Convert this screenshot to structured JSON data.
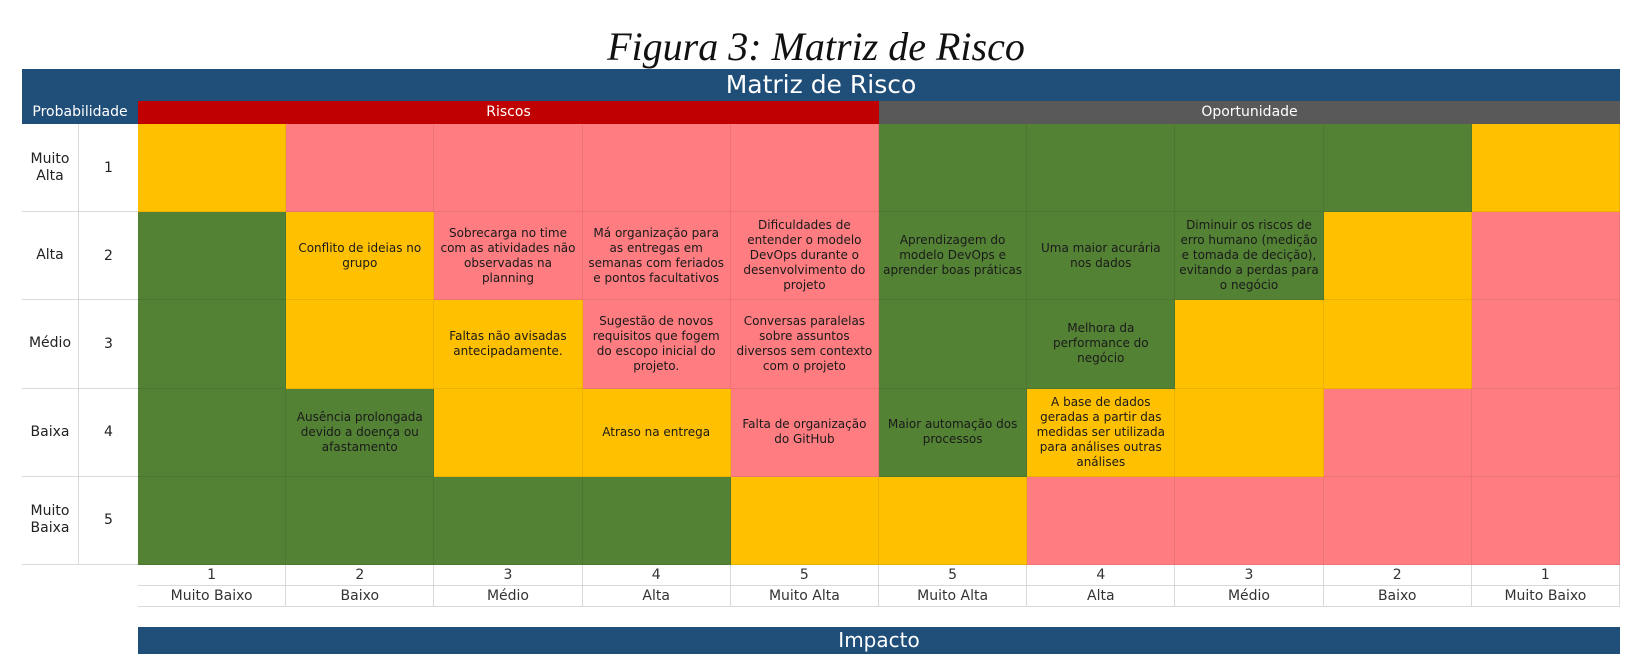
{
  "caption": "Figura 3: Matriz de Risco",
  "title": "Matriz de Risco",
  "headers": {
    "probability": "Probabilidade",
    "risks": "Riscos",
    "opportunity": "Oportunidade"
  },
  "colors": {
    "title_bar": "#1f4e79",
    "risks_header": "#c00000",
    "opportunity_header": "#595959",
    "green": "#548235",
    "yellow": "#ffc000",
    "red": "#ff7c80"
  },
  "rows": [
    {
      "label": "Muito Alta",
      "number": "1"
    },
    {
      "label": "Alta",
      "number": "2"
    },
    {
      "label": "Médio",
      "number": "3"
    },
    {
      "label": "Baixa",
      "number": "4"
    },
    {
      "label": "Muito Baixa",
      "number": "5"
    }
  ],
  "grid": [
    [
      {
        "color": "yellow",
        "text": ""
      },
      {
        "color": "red",
        "text": ""
      },
      {
        "color": "red",
        "text": ""
      },
      {
        "color": "red",
        "text": ""
      },
      {
        "color": "red",
        "text": ""
      },
      {
        "color": "green",
        "text": ""
      },
      {
        "color": "green",
        "text": ""
      },
      {
        "color": "green",
        "text": ""
      },
      {
        "color": "green",
        "text": ""
      },
      {
        "color": "yellow",
        "text": ""
      }
    ],
    [
      {
        "color": "green",
        "text": ""
      },
      {
        "color": "yellow",
        "text": "Conflito de ideias no grupo"
      },
      {
        "color": "red",
        "text": "Sobrecarga no time com as atividades não observadas na planning"
      },
      {
        "color": "red",
        "text": "Má organização para as entregas em semanas com feriados e pontos facultativos"
      },
      {
        "color": "red",
        "text": "Dificuldades de entender o modelo DevOps durante o desenvolvimento do projeto"
      },
      {
        "color": "green",
        "text": "Aprendizagem do modelo DevOps e aprender boas práticas"
      },
      {
        "color": "green",
        "text": "Uma maior acurária nos dados"
      },
      {
        "color": "green",
        "text": "Diminuir os riscos de erro humano (medição e tomada de decição), evitando a perdas para o negócio"
      },
      {
        "color": "yellow",
        "text": ""
      },
      {
        "color": "red",
        "text": ""
      }
    ],
    [
      {
        "color": "green",
        "text": ""
      },
      {
        "color": "yellow",
        "text": ""
      },
      {
        "color": "yellow",
        "text": "Faltas não avisadas antecipadamente."
      },
      {
        "color": "red",
        "text": "Sugestão de novos requisitos que fogem do escopo inicial do projeto."
      },
      {
        "color": "red",
        "text": "Conversas paralelas sobre assuntos diversos sem contexto com o projeto"
      },
      {
        "color": "green",
        "text": ""
      },
      {
        "color": "green",
        "text": "Melhora da performance do negócio"
      },
      {
        "color": "yellow",
        "text": ""
      },
      {
        "color": "yellow",
        "text": ""
      },
      {
        "color": "red",
        "text": ""
      }
    ],
    [
      {
        "color": "green",
        "text": ""
      },
      {
        "color": "green",
        "text": "Ausência prolongada devido a doença ou afastamento"
      },
      {
        "color": "yellow",
        "text": ""
      },
      {
        "color": "yellow",
        "text": "Atraso na entrega"
      },
      {
        "color": "red",
        "text": "Falta de organização do GitHub"
      },
      {
        "color": "green",
        "text": "Maior automação dos processos"
      },
      {
        "color": "yellow",
        "text": "A base de dados geradas a partir das medidas ser utilizada para análises outras análises"
      },
      {
        "color": "yellow",
        "text": ""
      },
      {
        "color": "red",
        "text": ""
      },
      {
        "color": "red",
        "text": ""
      }
    ],
    [
      {
        "color": "green",
        "text": ""
      },
      {
        "color": "green",
        "text": ""
      },
      {
        "color": "green",
        "text": ""
      },
      {
        "color": "green",
        "text": ""
      },
      {
        "color": "yellow",
        "text": ""
      },
      {
        "color": "yellow",
        "text": ""
      },
      {
        "color": "red",
        "text": ""
      },
      {
        "color": "red",
        "text": ""
      },
      {
        "color": "red",
        "text": ""
      },
      {
        "color": "red",
        "text": ""
      }
    ]
  ],
  "impact_columns": [
    {
      "number": "1",
      "label": "Muito Baixo"
    },
    {
      "number": "2",
      "label": "Baixo"
    },
    {
      "number": "3",
      "label": "Médio"
    },
    {
      "number": "4",
      "label": "Alta"
    },
    {
      "number": "5",
      "label": "Muito Alta"
    },
    {
      "number": "5",
      "label": "Muito Alta"
    },
    {
      "number": "4",
      "label": "Alta"
    },
    {
      "number": "3",
      "label": "Médio"
    },
    {
      "number": "2",
      "label": "Baixo"
    },
    {
      "number": "1",
      "label": "Muito Baixo"
    }
  ],
  "impact_title": "Impacto"
}
